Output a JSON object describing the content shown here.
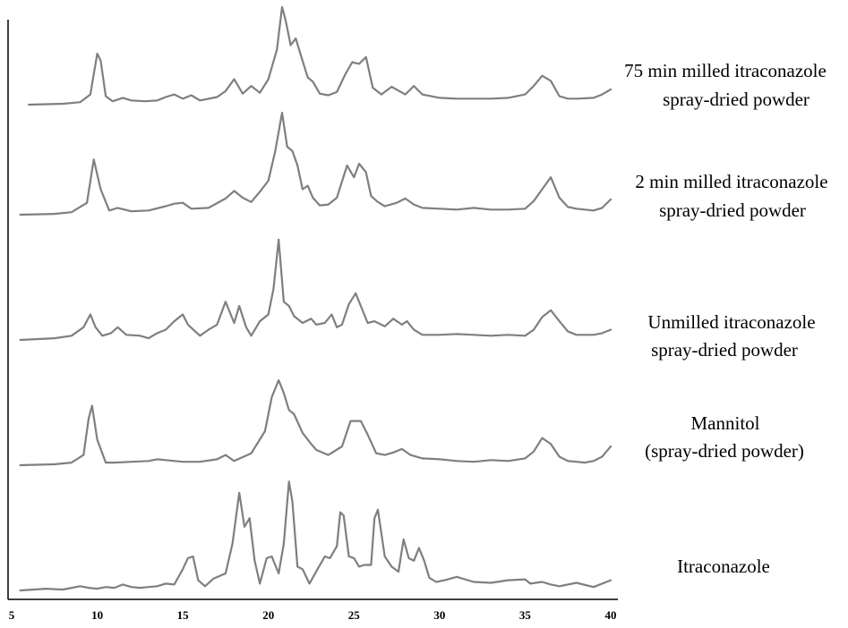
{
  "chart_data": {
    "type": "line",
    "x_ticks": [
      5,
      10,
      15,
      20,
      25,
      30,
      35,
      40
    ],
    "xlim": [
      5,
      40
    ],
    "grid": false,
    "series": [
      {
        "name": "75 min milled itraconazole spray-dried powder",
        "label_lines": [
          "75 min milled itraconazole",
          "spray-dried powder"
        ],
        "x": [
          6,
          8,
          9,
          9.6,
          10,
          10.2,
          10.5,
          10.9,
          11.5,
          12,
          12.8,
          13.5,
          14,
          14.5,
          15,
          15.5,
          16,
          17,
          17.5,
          18,
          18.5,
          19,
          19.5,
          20,
          20.5,
          20.8,
          21,
          21.3,
          21.6,
          21.9,
          22.3,
          22.6,
          23,
          23.5,
          24,
          24.5,
          24.9,
          25.3,
          25.7,
          26.1,
          26.6,
          27.2,
          28,
          28.5,
          29,
          30,
          31,
          32,
          33,
          34,
          35,
          35.5,
          36,
          36.5,
          37,
          37.5,
          38,
          39,
          39.5,
          40
        ],
        "y": [
          0,
          1,
          3,
          12,
          60,
          52,
          10,
          4,
          8,
          5,
          4,
          5,
          9,
          12,
          7,
          11,
          5,
          9,
          16,
          30,
          13,
          22,
          14,
          30,
          65,
          115,
          100,
          70,
          78,
          58,
          32,
          27,
          13,
          11,
          15,
          36,
          50,
          48,
          56,
          20,
          12,
          21,
          12,
          22,
          12,
          8,
          7,
          7,
          7,
          8,
          12,
          22,
          34,
          28,
          10,
          7,
          7,
          8,
          12,
          18
        ]
      },
      {
        "name": "2 min milled itraconazole spray-dried powder",
        "label_lines": [
          "2 min milled itraconazole",
          "spray-dried powder"
        ],
        "x": [
          5.5,
          7.5,
          8.5,
          9.4,
          9.8,
          10.2,
          10.7,
          11.2,
          12,
          13,
          14,
          14.5,
          15,
          15.5,
          16.5,
          17.5,
          18,
          18.5,
          19,
          19.5,
          20,
          20.4,
          20.8,
          21.1,
          21.4,
          21.7,
          22,
          22.3,
          22.6,
          23,
          23.5,
          24,
          24.6,
          25,
          25.3,
          25.7,
          26,
          26.4,
          26.8,
          27.5,
          28,
          28.5,
          29,
          30,
          31,
          32,
          33,
          34,
          35,
          35.5,
          36,
          36.5,
          37,
          37.5,
          38,
          38.5,
          39,
          39.5,
          40
        ],
        "y": [
          0,
          1,
          3,
          14,
          65,
          30,
          5,
          8,
          4,
          5,
          10,
          13,
          14,
          7,
          8,
          19,
          28,
          20,
          15,
          27,
          40,
          75,
          120,
          80,
          75,
          58,
          30,
          34,
          20,
          11,
          12,
          20,
          58,
          44,
          60,
          50,
          22,
          15,
          10,
          14,
          19,
          12,
          8,
          7,
          6,
          8,
          6,
          6,
          7,
          16,
          30,
          44,
          20,
          9,
          7,
          6,
          5,
          8,
          18
        ]
      },
      {
        "name": "Unmilled itraconazole spray-dried powder",
        "label_lines": [
          "Unmilled itraconazole",
          "spray-dried powder"
        ],
        "x": [
          5.5,
          7.5,
          8.5,
          9.2,
          9.6,
          9.9,
          10.3,
          10.8,
          11.2,
          11.7,
          12.5,
          13,
          13.5,
          14,
          14.5,
          15,
          15.3,
          16,
          16.5,
          17,
          17.5,
          18,
          18.3,
          18.7,
          19,
          19.5,
          20,
          20.3,
          20.6,
          20.9,
          21.2,
          21.5,
          22,
          22.5,
          22.8,
          23.3,
          23.7,
          24,
          24.3,
          24.7,
          25.1,
          25.4,
          25.8,
          26.2,
          26.8,
          27.3,
          27.8,
          28.1,
          28.5,
          29,
          30,
          31,
          32,
          33,
          34,
          35,
          35.5,
          36,
          36.5,
          37,
          37.5,
          38,
          38.5,
          39,
          39.5,
          40
        ],
        "y": [
          0,
          2,
          5,
          15,
          30,
          15,
          5,
          8,
          15,
          6,
          5,
          2,
          8,
          12,
          22,
          30,
          18,
          5,
          12,
          18,
          45,
          20,
          40,
          15,
          5,
          22,
          30,
          60,
          118,
          45,
          40,
          28,
          20,
          25,
          18,
          20,
          30,
          15,
          18,
          42,
          55,
          40,
          20,
          22,
          16,
          25,
          18,
          22,
          12,
          6,
          6,
          7,
          6,
          5,
          6,
          5,
          12,
          27,
          35,
          22,
          10,
          6,
          6,
          6,
          8,
          12
        ]
      },
      {
        "name": "Mannitol (spray-dried powder)",
        "label_lines": [
          "Mannitol",
          "(spray-dried powder)"
        ],
        "x": [
          5.5,
          7.5,
          8.5,
          9.2,
          9.5,
          9.7,
          10,
          10.5,
          11,
          12,
          13,
          13.5,
          14,
          15,
          16,
          17,
          17.5,
          18,
          19,
          19.8,
          20.2,
          20.6,
          20.9,
          21.2,
          21.5,
          22,
          22.5,
          22.8,
          23.5,
          24.3,
          24.8,
          25.4,
          25.8,
          26.3,
          26.8,
          27.3,
          27.8,
          28.3,
          29,
          30,
          31,
          32,
          33,
          34,
          35,
          35.5,
          36,
          36.5,
          37,
          37.5,
          38,
          38.5,
          39,
          39.5,
          40
        ],
        "y": [
          0,
          1,
          3,
          12,
          55,
          70,
          30,
          3,
          3,
          4,
          5,
          7,
          6,
          4,
          4,
          7,
          12,
          5,
          14,
          40,
          80,
          100,
          85,
          65,
          60,
          38,
          25,
          18,
          12,
          22,
          52,
          52,
          36,
          14,
          12,
          15,
          19,
          12,
          8,
          7,
          5,
          4,
          6,
          5,
          8,
          16,
          32,
          25,
          10,
          5,
          4,
          3,
          5,
          10,
          22
        ]
      },
      {
        "name": "Itraconazole",
        "label_lines": [
          "Itraconazole"
        ],
        "x": [
          5.5,
          7,
          8,
          9,
          9.5,
          10,
          10.5,
          11,
          11.5,
          12,
          12.5,
          13,
          13.5,
          14,
          14.5,
          15,
          15.3,
          15.6,
          15.9,
          16.3,
          16.8,
          17.5,
          17.9,
          18.3,
          18.6,
          18.9,
          19.2,
          19.5,
          19.9,
          20.2,
          20.6,
          20.9,
          21.2,
          21.4,
          21.7,
          22,
          22.4,
          22.9,
          23.3,
          23.6,
          24,
          24.2,
          24.4,
          24.7,
          25,
          25.3,
          25.6,
          26,
          26.2,
          26.4,
          26.8,
          27.2,
          27.6,
          27.9,
          28.2,
          28.5,
          28.8,
          29.1,
          29.4,
          29.8,
          30.3,
          31,
          32,
          33,
          34,
          35,
          35.3,
          36,
          36.5,
          37,
          38,
          39,
          40
        ],
        "y": [
          0,
          2,
          1,
          5,
          3,
          2,
          4,
          3,
          7,
          4,
          3,
          4,
          5,
          8,
          7,
          25,
          38,
          40,
          12,
          5,
          14,
          20,
          55,
          115,
          75,
          85,
          35,
          8,
          38,
          40,
          20,
          55,
          128,
          105,
          28,
          25,
          8,
          26,
          40,
          38,
          52,
          92,
          88,
          40,
          38,
          28,
          30,
          30,
          85,
          95,
          40,
          28,
          22,
          60,
          38,
          35,
          50,
          35,
          15,
          10,
          12,
          16,
          10,
          9,
          12,
          13,
          8,
          10,
          7,
          5,
          9,
          4,
          12
        ]
      }
    ]
  }
}
